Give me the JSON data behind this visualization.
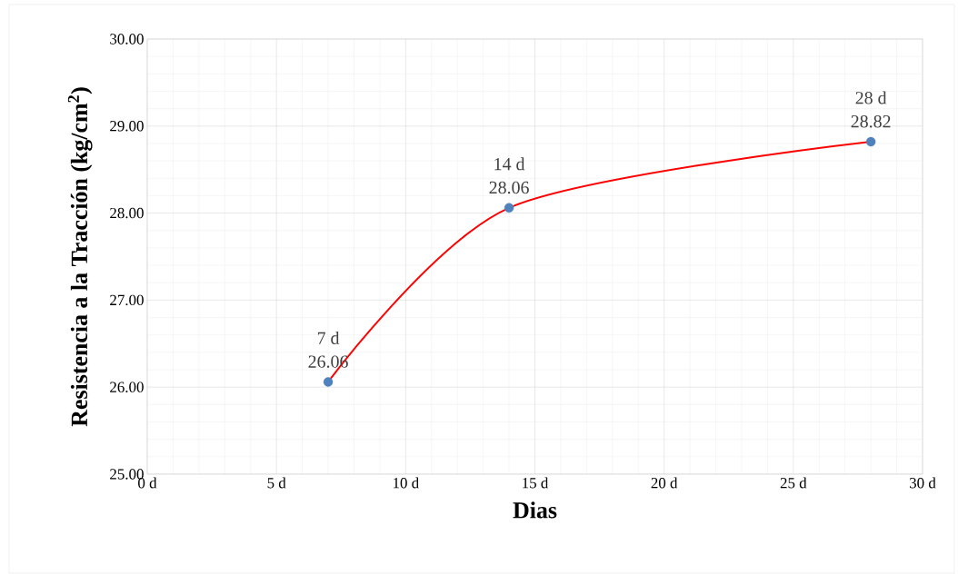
{
  "chart_data": {
    "type": "line",
    "xlabel": "Dias",
    "ylabel": "Resistencia a la Tracción (kg/cm$^{2}$)",
    "x": [
      7,
      14,
      28
    ],
    "series": [
      {
        "values": [
          26.06,
          28.06,
          28.82
        ],
        "color": "#ff0000",
        "colors": [
          "#4f81bd",
          "#4f81bd",
          "#4f81bd"
        ]
      }
    ],
    "data_labels": true,
    "annotations": [
      {
        "text": "7 d",
        "x": 7,
        "y": 26.06
      },
      {
        "text": "14 d",
        "x": 14,
        "y": 28.06
      },
      {
        "text": "28 d",
        "x": 28,
        "y": 28.82
      }
    ],
    "xlim": [
      0,
      30
    ],
    "ylim": [
      25,
      30
    ],
    "xticks": [
      {
        "value": 0,
        "label": "0 d"
      },
      {
        "value": 5,
        "label": "5 d"
      },
      {
        "value": 10,
        "label": "10 d"
      },
      {
        "value": 15,
        "label": "15 d"
      },
      {
        "value": 20,
        "label": "20 d"
      },
      {
        "value": 25,
        "label": "25 d"
      },
      {
        "value": 30,
        "label": "30 d"
      }
    ],
    "yticks": [
      {
        "value": 25,
        "label": "25.00"
      },
      {
        "value": 26,
        "label": "26.00"
      },
      {
        "value": 27,
        "label": "27.00"
      },
      {
        "value": 28,
        "label": "28.00"
      },
      {
        "value": 29,
        "label": "29.00"
      },
      {
        "value": 30,
        "label": "30.00"
      }
    ],
    "grid": true,
    "marker": "circle",
    "line_style": "solid"
  }
}
